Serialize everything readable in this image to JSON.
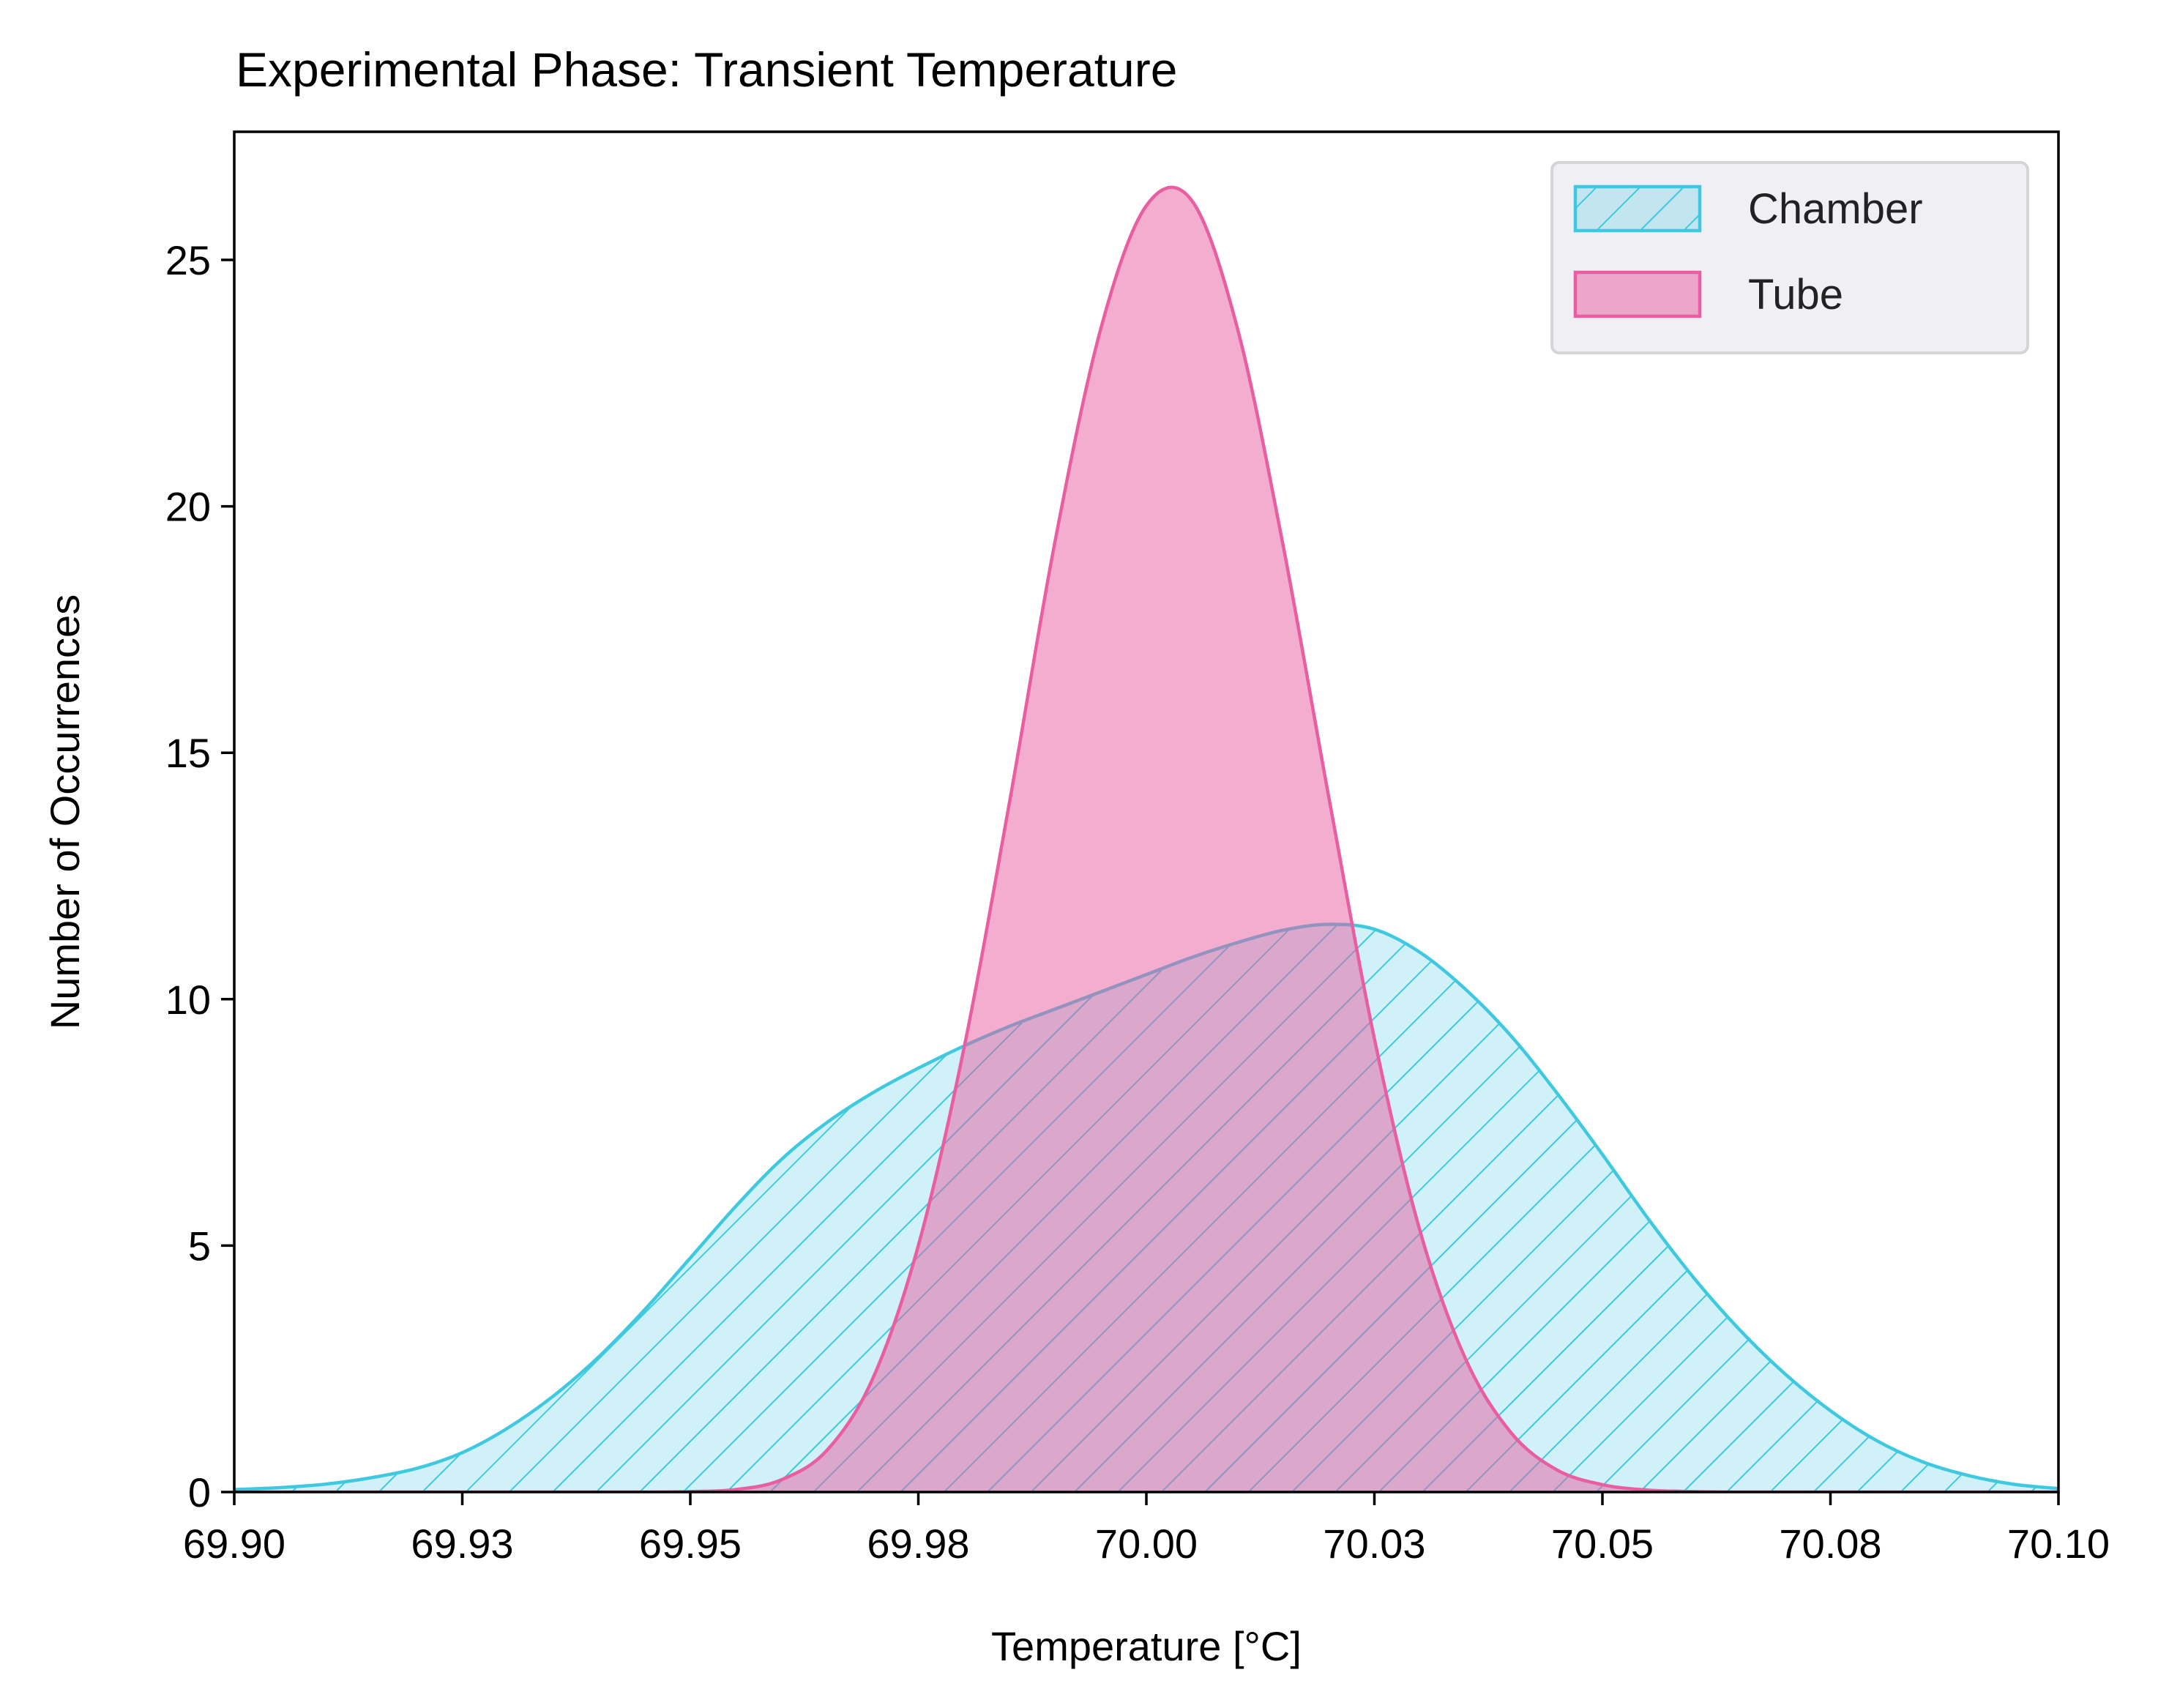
{
  "chart_data": {
    "type": "area",
    "title": "Experimental Phase: Transient Temperature",
    "xlabel": "Temperature [°C]",
    "ylabel": "Number of Occurrences",
    "xlim": [
      69.9,
      70.1
    ],
    "ylim": [
      0,
      27.6
    ],
    "x_ticks": [
      69.9,
      69.925,
      69.95,
      69.975,
      70.0,
      70.025,
      70.05,
      70.075,
      70.1
    ],
    "x_tick_labels": [
      "69.90",
      "69.93",
      "69.95",
      "69.98",
      "70.00",
      "70.03",
      "70.05",
      "70.08",
      "70.10"
    ],
    "y_ticks": [
      0,
      5,
      10,
      15,
      20,
      25
    ],
    "y_tick_labels": [
      "0",
      "5",
      "10",
      "15",
      "20",
      "25"
    ],
    "grid": false,
    "legend_position": "top-right",
    "x": [
      69.9,
      69.905,
      69.91,
      69.915,
      69.92,
      69.925,
      69.93,
      69.935,
      69.94,
      69.945,
      69.95,
      69.955,
      69.96,
      69.965,
      69.97,
      69.975,
      69.98,
      69.985,
      69.99,
      69.995,
      70.0,
      70.005,
      70.01,
      70.015,
      70.02,
      70.025,
      70.03,
      70.035,
      70.04,
      70.045,
      70.05,
      70.055,
      70.06,
      70.065,
      70.07,
      70.075,
      70.08,
      70.085,
      70.09,
      70.095,
      70.1
    ],
    "series": [
      {
        "name": "Chamber",
        "color": "#3ec9e0",
        "fill": "rgba(62,201,224,0.25)",
        "hatch": "diagonal",
        "values": [
          0.05,
          0.09,
          0.16,
          0.29,
          0.48,
          0.8,
          1.3,
          1.95,
          2.75,
          3.7,
          4.75,
          5.8,
          6.75,
          7.5,
          8.1,
          8.6,
          9.05,
          9.45,
          9.8,
          10.15,
          10.5,
          10.85,
          11.15,
          11.4,
          11.52,
          11.42,
          10.95,
          10.2,
          9.25,
          8.1,
          6.85,
          5.55,
          4.35,
          3.3,
          2.4,
          1.65,
          1.05,
          0.62,
          0.34,
          0.16,
          0.07
        ]
      },
      {
        "name": "Tube",
        "color": "#e85ea0",
        "fill": "rgba(232,94,160,0.5)",
        "hatch": "none",
        "values": [
          0,
          0,
          0,
          0,
          0,
          0,
          0,
          0,
          0,
          0,
          0.01,
          0.05,
          0.25,
          0.85,
          2.3,
          5.0,
          9.0,
          14.0,
          19.3,
          23.6,
          26.1,
          26.2,
          23.6,
          19.2,
          14.1,
          9.2,
          5.3,
          2.7,
          1.2,
          0.45,
          0.15,
          0.04,
          0.01,
          0,
          0,
          0,
          0,
          0,
          0,
          0,
          0
        ]
      }
    ]
  }
}
